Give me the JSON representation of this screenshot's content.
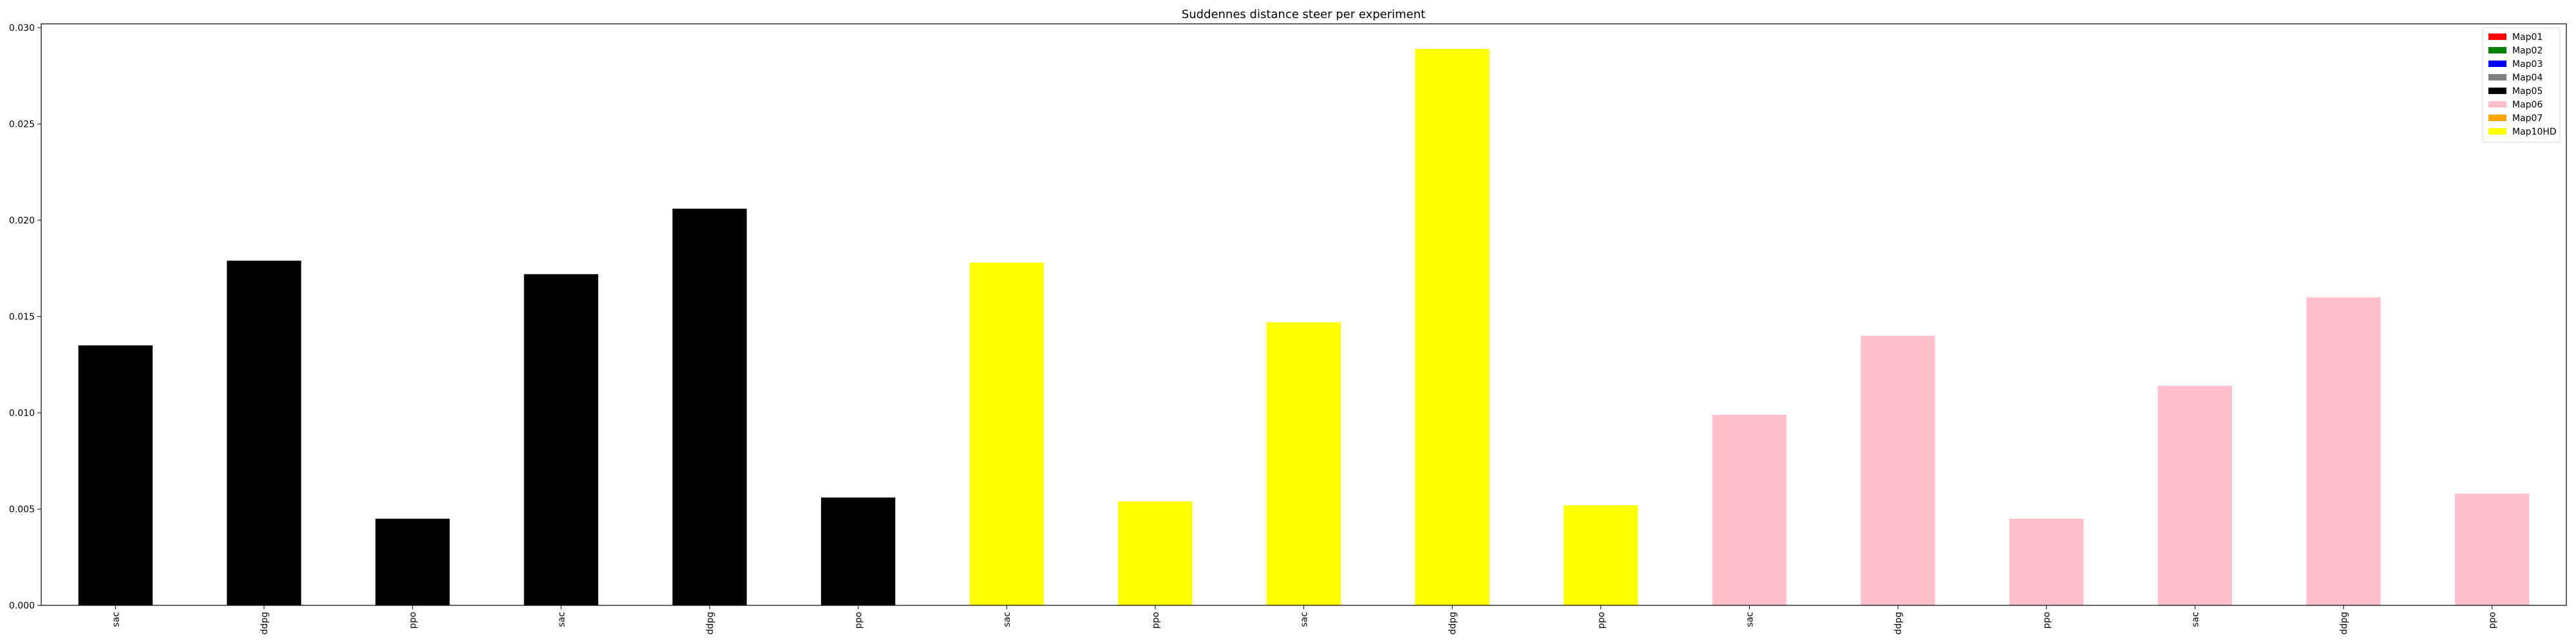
{
  "chart_data": {
    "type": "bar",
    "title": "Suddennes distance steer per experiment",
    "xlabel": "",
    "ylabel": "",
    "ylim": [
      0,
      0.0302
    ],
    "yticks": [
      "0.000",
      "0.005",
      "0.010",
      "0.015",
      "0.020",
      "0.025",
      "0.030"
    ],
    "ytick_values": [
      0.0,
      0.005,
      0.01,
      0.015,
      0.02,
      0.025,
      0.03
    ],
    "grid": false,
    "legend_position": "top-right",
    "legend": [
      {
        "label": "Map01",
        "color": "#ff0000"
      },
      {
        "label": "Map02",
        "color": "#008000"
      },
      {
        "label": "Map03",
        "color": "#0000ff"
      },
      {
        "label": "Map04",
        "color": "#808080"
      },
      {
        "label": "Map05",
        "color": "#000000"
      },
      {
        "label": "Map06",
        "color": "#ffc0cb"
      },
      {
        "label": "Map07",
        "color": "#ffa500"
      },
      {
        "label": "Map10HD",
        "color": "#ffff00"
      }
    ],
    "bars": [
      {
        "category": "sac",
        "value": 0.0135,
        "map": "Map05"
      },
      {
        "category": "ddpg",
        "value": 0.0179,
        "map": "Map05"
      },
      {
        "category": "ppo",
        "value": 0.0045,
        "map": "Map05"
      },
      {
        "category": "sac",
        "value": 0.0172,
        "map": "Map05"
      },
      {
        "category": "ddpg",
        "value": 0.0206,
        "map": "Map05"
      },
      {
        "category": "ppo",
        "value": 0.0056,
        "map": "Map05"
      },
      {
        "category": "sac",
        "value": 0.0178,
        "map": "Map10HD"
      },
      {
        "category": "ppo",
        "value": 0.0054,
        "map": "Map10HD"
      },
      {
        "category": "sac",
        "value": 0.0147,
        "map": "Map10HD"
      },
      {
        "category": "ddpg",
        "value": 0.0289,
        "map": "Map10HD"
      },
      {
        "category": "ppo",
        "value": 0.0052,
        "map": "Map10HD"
      },
      {
        "category": "sac",
        "value": 0.0099,
        "map": "Map06"
      },
      {
        "category": "ddpg",
        "value": 0.014,
        "map": "Map06"
      },
      {
        "category": "ppo",
        "value": 0.0045,
        "map": "Map06"
      },
      {
        "category": "sac",
        "value": 0.0114,
        "map": "Map06"
      },
      {
        "category": "ddpg",
        "value": 0.016,
        "map": "Map06"
      },
      {
        "category": "ppo",
        "value": 0.0058,
        "map": "Map06"
      }
    ]
  }
}
